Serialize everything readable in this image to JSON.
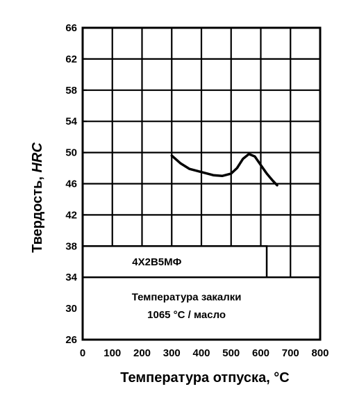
{
  "chart_data": {
    "type": "line",
    "title": "",
    "xlabel": "Температура отпуска, °C",
    "ylabel": "Твердость, ",
    "ylabel_italic": "HRC",
    "xlim": [
      0,
      800
    ],
    "ylim": [
      26,
      66
    ],
    "x_ticks": [
      0,
      100,
      200,
      300,
      400,
      500,
      600,
      700,
      800
    ],
    "y_ticks": [
      26,
      30,
      34,
      38,
      42,
      46,
      50,
      54,
      58,
      62,
      66
    ],
    "x_tick_labels": [
      "0",
      "100",
      "200",
      "300",
      "400",
      "500",
      "600",
      "700",
      "800"
    ],
    "y_tick_labels": [
      "26",
      "30",
      "34",
      "38",
      "42",
      "46",
      "50",
      "54",
      "58",
      "62",
      "66"
    ],
    "grid": true,
    "series": [
      {
        "x": [
          300,
          330,
          360,
          400,
          440,
          470,
          500,
          520,
          540,
          560,
          580,
          600,
          620,
          640,
          655
        ],
        "y": [
          49.6,
          48.6,
          47.9,
          47.5,
          47.1,
          47.0,
          47.3,
          48.0,
          49.2,
          49.8,
          49.5,
          48.4,
          47.3,
          46.4,
          45.8
        ]
      }
    ],
    "annotations": {
      "steel_grade": "4Х2В5МФ",
      "quench_line1": "Температура закалки",
      "quench_line2": "1065 °C / масло"
    }
  }
}
